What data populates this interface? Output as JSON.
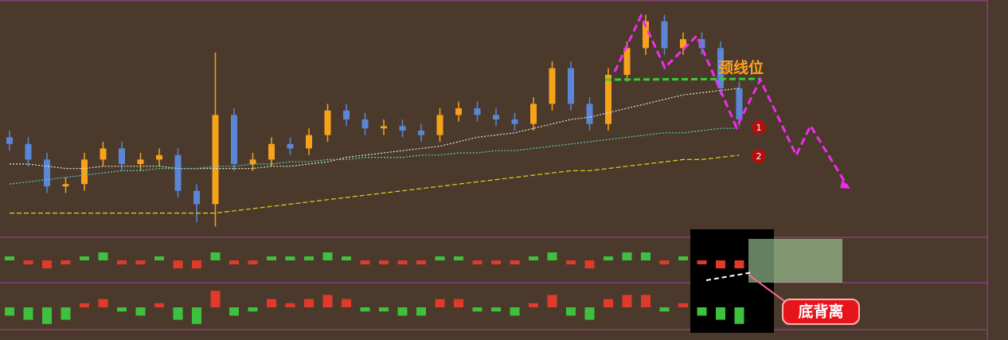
{
  "chart_data": {
    "type": "candlestick",
    "ylim": [
      0,
      100
    ],
    "open": [
      42,
      39,
      32,
      20,
      21,
      32,
      37,
      30,
      32,
      34,
      18,
      12,
      52,
      30,
      32,
      39,
      37,
      43,
      54,
      50,
      46,
      47,
      45,
      43,
      52,
      55,
      52,
      50,
      48,
      57,
      73,
      57,
      48,
      70,
      82,
      94,
      82,
      86,
      82,
      64
    ],
    "high": [
      45,
      42,
      35,
      24,
      35,
      40,
      40,
      35,
      37,
      37,
      21,
      80,
      55,
      35,
      42,
      42,
      46,
      57,
      57,
      53,
      50,
      50,
      48,
      55,
      58,
      58,
      55,
      53,
      60,
      76,
      76,
      60,
      73,
      85,
      97,
      97,
      89,
      89,
      85,
      67
    ],
    "low": [
      36,
      29,
      17,
      17,
      18,
      29,
      27,
      27,
      29,
      15,
      4,
      2,
      27,
      27,
      29,
      34,
      34,
      40,
      47,
      43,
      43,
      42,
      40,
      40,
      49,
      49,
      47,
      45,
      45,
      54,
      54,
      45,
      45,
      67,
      79,
      79,
      79,
      79,
      61,
      47
    ],
    "close": [
      39,
      32,
      20,
      21,
      32,
      37,
      30,
      32,
      34,
      18,
      12,
      52,
      30,
      32,
      39,
      37,
      43,
      54,
      50,
      46,
      47,
      45,
      43,
      52,
      55,
      52,
      50,
      48,
      57,
      73,
      57,
      48,
      70,
      82,
      94,
      82,
      86,
      82,
      64,
      50
    ],
    "up_color": "#f7a21b",
    "down_color": "#5b86d6",
    "series": [
      {
        "color": "#e8e2c8",
        "values": [
          30,
          30,
          29,
          28,
          28,
          29,
          29,
          29,
          29,
          28,
          28,
          28,
          28,
          28,
          29,
          29,
          30,
          31,
          33,
          34,
          35,
          36,
          37,
          38,
          40,
          42,
          43,
          44,
          46,
          48,
          50,
          51,
          53,
          55,
          57,
          59,
          61,
          62,
          63,
          64
        ]
      },
      {
        "color": "#4fd1c5",
        "values": [
          21,
          22,
          23,
          24,
          25,
          26,
          27,
          27,
          28,
          28,
          28,
          29,
          29,
          30,
          30,
          31,
          31,
          32,
          32,
          33,
          33,
          33,
          34,
          34,
          35,
          35,
          36,
          36,
          37,
          38,
          39,
          40,
          41,
          42,
          43,
          44,
          44,
          45,
          46,
          46
        ]
      },
      {
        "color": "#e0d020",
        "values": [
          8,
          8,
          8,
          8,
          8,
          8,
          8,
          8,
          8,
          8,
          8,
          8,
          9,
          10,
          11,
          12,
          13,
          14,
          15,
          16,
          17,
          18,
          19,
          20,
          21,
          22,
          23,
          24,
          25,
          26,
          27,
          27,
          28,
          29,
          30,
          31,
          32,
          32,
          33,
          34
        ]
      }
    ],
    "indicators": [
      {
        "type": "bar",
        "ylim": [
          -5,
          5
        ],
        "up_color": "#3ec13e",
        "down_color": "#e03a2a",
        "values": [
          1,
          -1,
          -2,
          -1,
          1,
          2,
          -1,
          -1,
          1,
          -2,
          -2,
          2,
          -1,
          -1,
          1,
          1,
          1,
          2,
          1,
          -1,
          -1,
          -1,
          -1,
          1,
          1,
          -1,
          -1,
          -1,
          1,
          2,
          -1,
          -2,
          1,
          2,
          2,
          -1,
          1,
          -1,
          -2,
          -2
        ]
      },
      {
        "type": "bar",
        "ylim": [
          -5,
          5
        ],
        "up_color": "#e03a2a",
        "down_color": "#3ec13e",
        "values": [
          -2,
          -3,
          -4,
          -3,
          1,
          2,
          -1,
          -2,
          1,
          -3,
          -4,
          4,
          -2,
          -1,
          2,
          1,
          2,
          3,
          2,
          -1,
          -1,
          -2,
          -2,
          2,
          2,
          -1,
          -1,
          -2,
          1,
          3,
          -2,
          -3,
          2,
          3,
          3,
          -1,
          1,
          -2,
          -3,
          -4
        ]
      }
    ]
  },
  "annotations": {
    "neckline": "颈线位",
    "marker_1": "1",
    "marker_2": "2",
    "divergence": "底背离"
  }
}
